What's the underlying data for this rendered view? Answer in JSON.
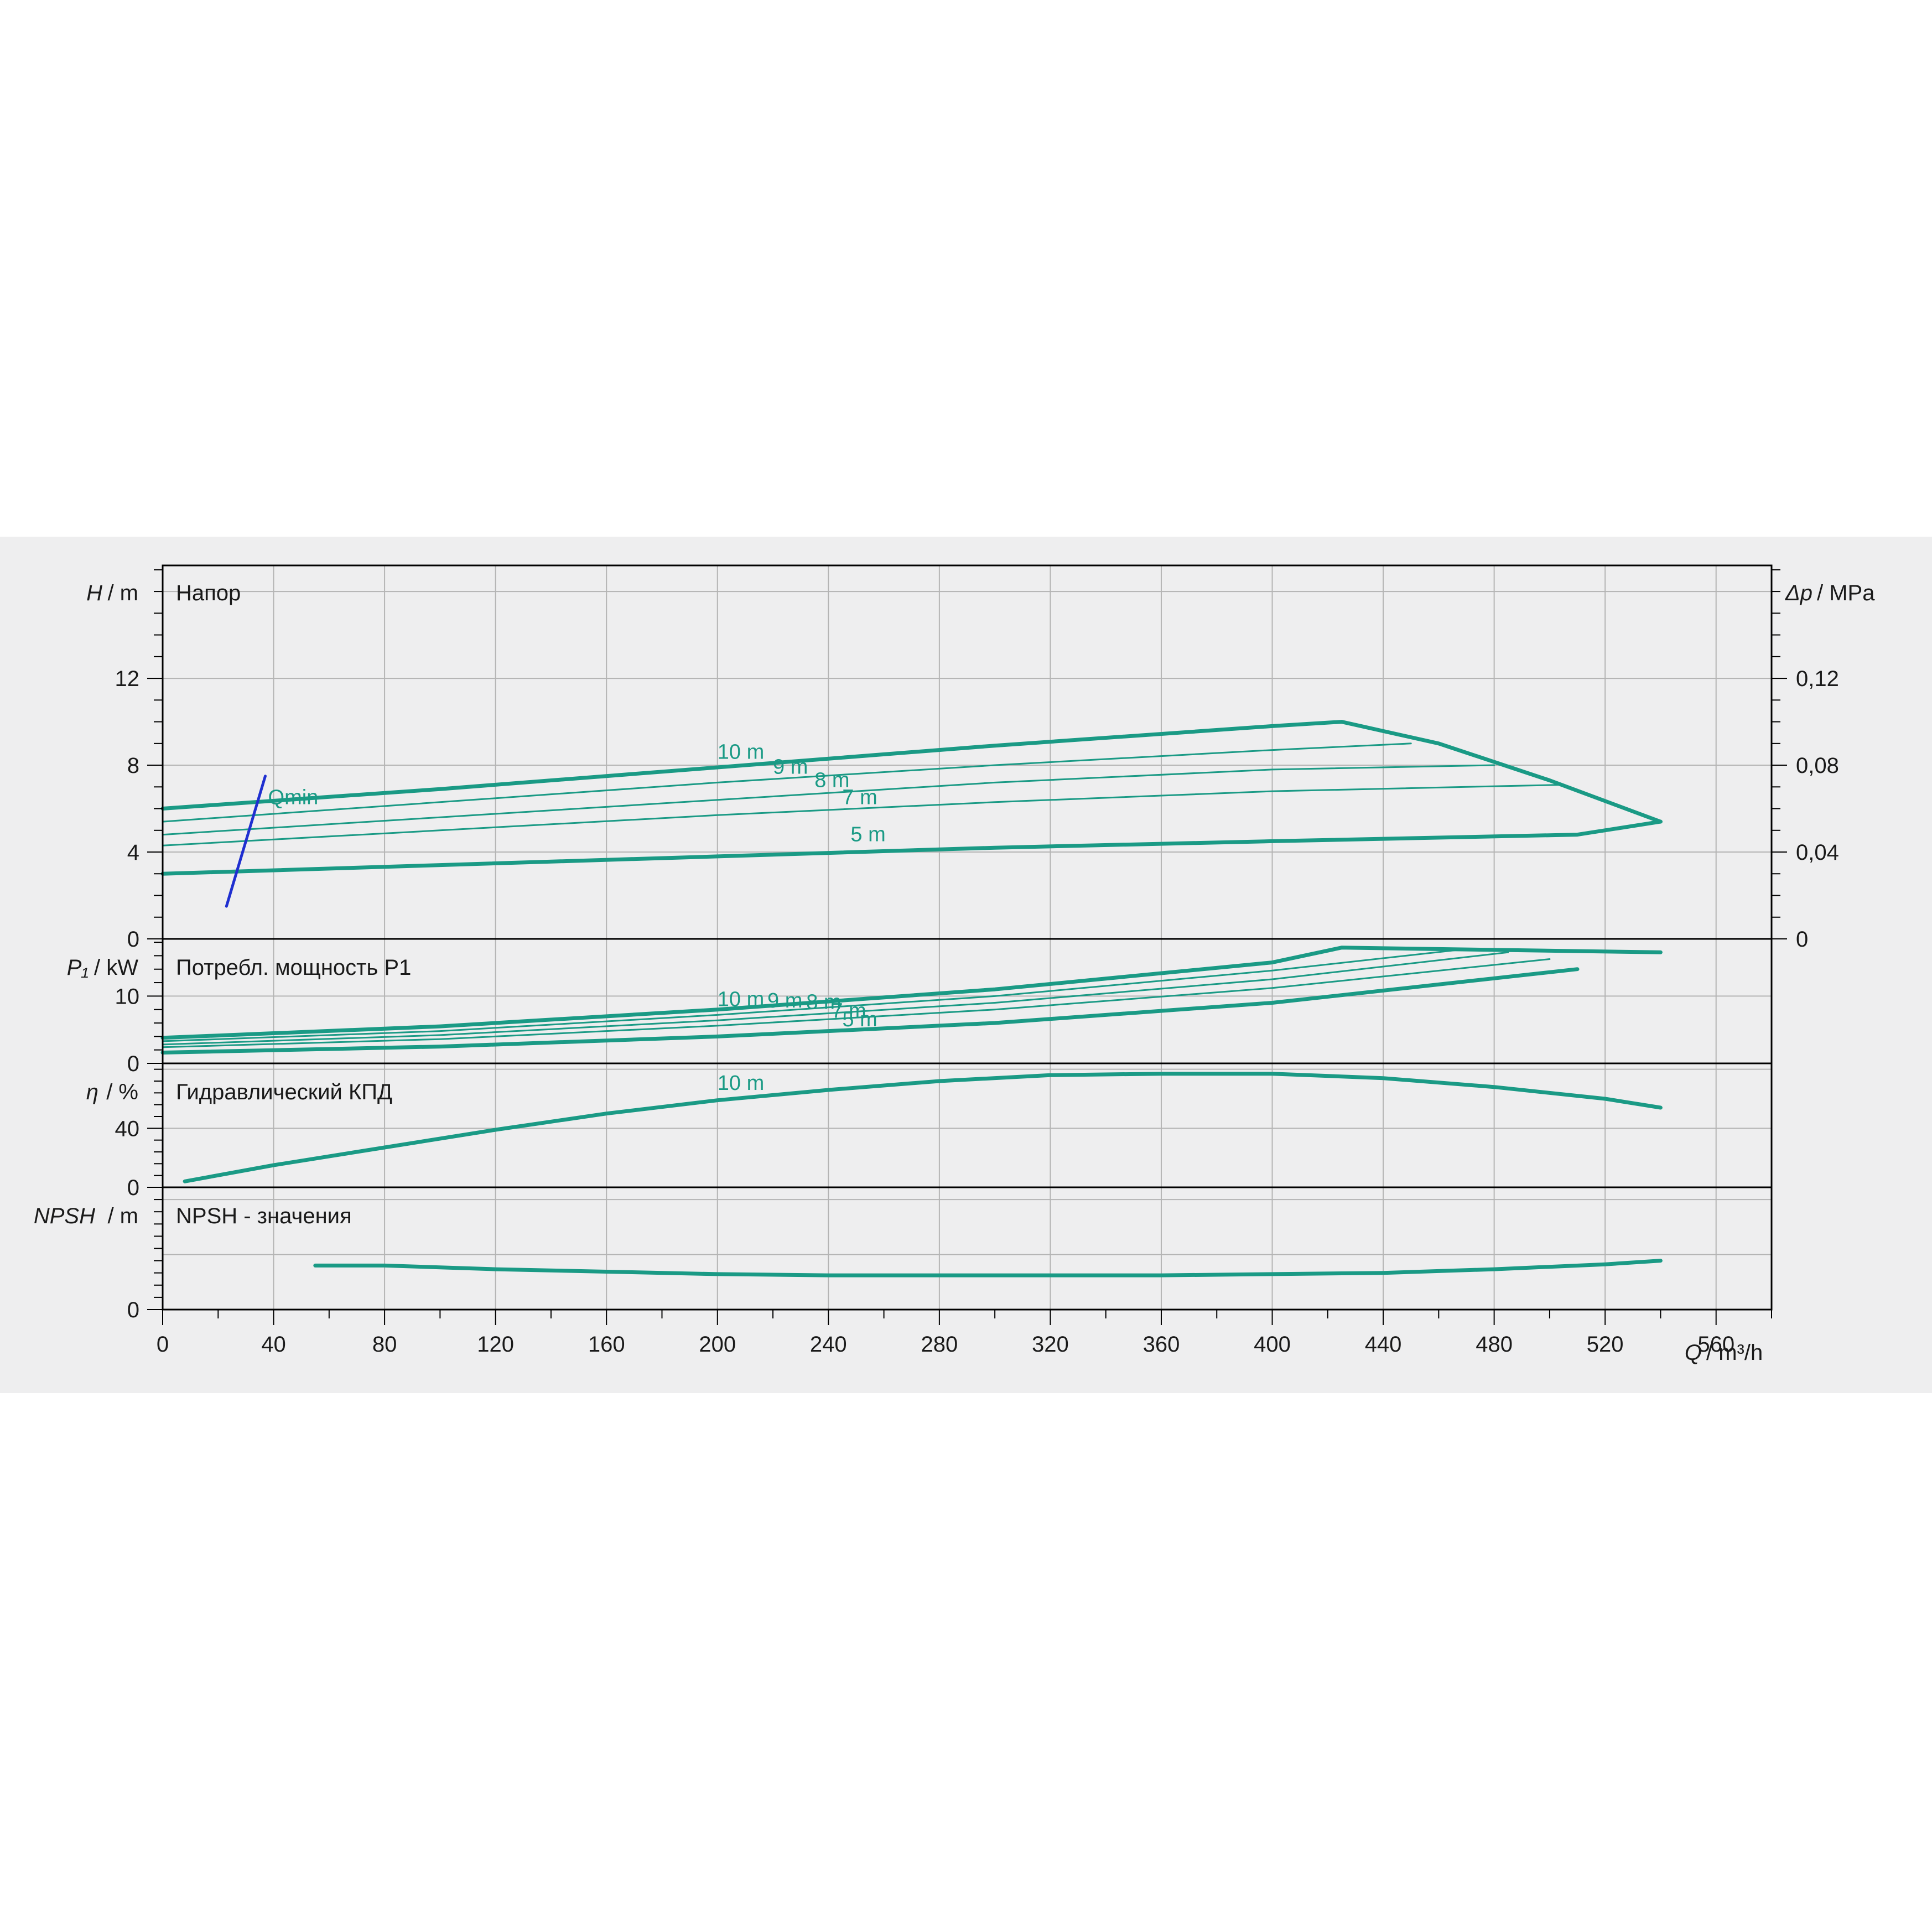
{
  "colors": {
    "curve": "#1a9a85",
    "qmin": "#1f2fd0",
    "grid": "#b4b4b4",
    "frame": "#000000",
    "background": "#eeeeef"
  },
  "chart_data": [
    {
      "type": "line",
      "panel": "head",
      "title": "Напор",
      "ylabel_symbol": "H",
      "ylabel_unit": "/ m",
      "y2label_symbol": "Δp",
      "y2label_unit": "/ MPa",
      "xlim": [
        0,
        580
      ],
      "ylim": [
        0,
        17.2
      ],
      "y2lim": [
        0,
        0.172
      ],
      "yticks": [
        "0",
        "4",
        "8",
        "12"
      ],
      "yticks_values": [
        0,
        4,
        8,
        12
      ],
      "y2ticks": [
        "0",
        "0,04",
        "0,08",
        "0,12"
      ],
      "y2ticks_values": [
        0,
        0.04,
        0.08,
        0.12
      ],
      "grid": true,
      "series": [
        {
          "name": "10 m",
          "weight": "thick",
          "x": [
            0,
            100,
            200,
            300,
            400,
            425,
            460,
            500,
            540
          ],
          "y": [
            6.0,
            6.9,
            7.9,
            8.9,
            9.8,
            10.0,
            9.0,
            7.3,
            5.4
          ]
        },
        {
          "name": "9 m",
          "weight": "thin",
          "x": [
            0,
            100,
            200,
            300,
            400,
            450
          ],
          "y": [
            5.4,
            6.3,
            7.2,
            8.0,
            8.7,
            9.0
          ]
        },
        {
          "name": "8 m",
          "weight": "thin",
          "x": [
            0,
            100,
            200,
            300,
            400,
            480
          ],
          "y": [
            4.8,
            5.6,
            6.4,
            7.2,
            7.8,
            8.0
          ]
        },
        {
          "name": "7 m",
          "weight": "thin",
          "x": [
            0,
            100,
            200,
            300,
            400,
            505
          ],
          "y": [
            4.3,
            5.0,
            5.7,
            6.3,
            6.8,
            7.1
          ]
        },
        {
          "name": "5 m",
          "weight": "thick",
          "x": [
            0,
            100,
            200,
            300,
            400,
            510,
            540
          ],
          "y": [
            3.0,
            3.4,
            3.8,
            4.2,
            4.5,
            4.8,
            5.4
          ]
        },
        {
          "name": "Qmin",
          "weight": "qmin",
          "x": [
            23,
            37
          ],
          "y": [
            1.5,
            7.5
          ]
        }
      ],
      "annotations": [
        {
          "text": "10 m",
          "x": 200,
          "y": 8.3
        },
        {
          "text": "9 m",
          "x": 220,
          "y": 7.6
        },
        {
          "text": "8 m",
          "x": 235,
          "y": 7.0
        },
        {
          "text": "7 m",
          "x": 245,
          "y": 6.2
        },
        {
          "text": "5 m",
          "x": 248,
          "y": 4.5
        },
        {
          "text": "Qmin",
          "x": 38,
          "y": 6.2
        }
      ]
    },
    {
      "type": "line",
      "panel": "power",
      "title": "Потребл. мощность P1",
      "ylabel_symbol": "P₁",
      "ylabel_unit": "/ kW",
      "xlim": [
        0,
        580
      ],
      "ylim": [
        0,
        18.5
      ],
      "yticks": [
        "0",
        "10"
      ],
      "yticks_values": [
        0,
        10
      ],
      "grid": true,
      "series": [
        {
          "name": "10 m",
          "weight": "thick",
          "x": [
            0,
            100,
            200,
            300,
            400,
            425,
            540
          ],
          "y": [
            3.8,
            5.5,
            8.0,
            11.0,
            15.0,
            17.2,
            16.5
          ]
        },
        {
          "name": "9 m",
          "weight": "thin",
          "x": [
            0,
            100,
            200,
            300,
            400,
            470
          ],
          "y": [
            3.3,
            4.8,
            7.2,
            10.0,
            13.8,
            17.0
          ]
        },
        {
          "name": "8 m",
          "weight": "thin",
          "x": [
            0,
            100,
            200,
            300,
            400,
            485
          ],
          "y": [
            2.8,
            4.2,
            6.4,
            9.0,
            12.5,
            16.5
          ]
        },
        {
          "name": "7 m",
          "weight": "thin",
          "x": [
            0,
            100,
            200,
            300,
            400,
            500
          ],
          "y": [
            2.4,
            3.6,
            5.6,
            8.0,
            11.2,
            15.5
          ]
        },
        {
          "name": "5 m",
          "weight": "thick",
          "x": [
            0,
            100,
            200,
            300,
            400,
            510
          ],
          "y": [
            1.6,
            2.5,
            4.0,
            6.0,
            9.0,
            14.0
          ]
        }
      ],
      "annotations": [
        {
          "text": "10 m",
          "x": 200,
          "y": 8.5
        },
        {
          "text": "9 m",
          "x": 218,
          "y": 8.3
        },
        {
          "text": "8 m",
          "x": 232,
          "y": 8.1
        },
        {
          "text": "7 m",
          "x": 241,
          "y": 6.8
        },
        {
          "text": "5 m",
          "x": 245,
          "y": 5.5
        }
      ]
    },
    {
      "type": "line",
      "panel": "efficiency",
      "title": "Гидравлический КПД",
      "ylabel_symbol": "η",
      "ylabel_unit": "/ %",
      "xlim": [
        0,
        580
      ],
      "ylim": [
        0,
        84
      ],
      "yticks": [
        "0",
        "40"
      ],
      "yticks_values": [
        0,
        40
      ],
      "grid": true,
      "series": [
        {
          "name": "10 m",
          "weight": "thick",
          "x": [
            8,
            40,
            80,
            120,
            160,
            200,
            240,
            280,
            320,
            360,
            400,
            440,
            480,
            520,
            540
          ],
          "y": [
            4,
            15,
            27,
            39,
            50,
            59,
            66,
            72,
            76,
            77,
            77,
            74,
            68,
            60,
            54
          ]
        }
      ],
      "annotations": [
        {
          "text": "10 m",
          "x": 200,
          "y": 66
        }
      ]
    },
    {
      "type": "line",
      "panel": "npsh",
      "title": "NPSH - значения",
      "ylabel_symbol": "NPSH",
      "ylabel_unit": "/ m",
      "xlim": [
        0,
        580
      ],
      "ylim": [
        0,
        10
      ],
      "yticks": [
        "0"
      ],
      "yticks_values": [
        0
      ],
      "grid": true,
      "series": [
        {
          "name": "NPSH",
          "weight": "thick",
          "x": [
            55,
            80,
            120,
            160,
            200,
            240,
            280,
            320,
            360,
            400,
            440,
            480,
            520,
            540
          ],
          "y": [
            3.6,
            3.6,
            3.3,
            3.1,
            2.9,
            2.8,
            2.8,
            2.8,
            2.8,
            2.9,
            3.0,
            3.3,
            3.7,
            4.0
          ]
        }
      ]
    }
  ],
  "xaxis": {
    "label_symbol": "Q",
    "label_unit": "/ m³/h",
    "ticks": [
      "0",
      "40",
      "80",
      "120",
      "160",
      "200",
      "240",
      "280",
      "320",
      "360",
      "400",
      "440",
      "480",
      "520",
      "560"
    ],
    "ticks_values": [
      0,
      40,
      80,
      120,
      160,
      200,
      240,
      280,
      320,
      360,
      400,
      440,
      480,
      520,
      560
    ]
  }
}
